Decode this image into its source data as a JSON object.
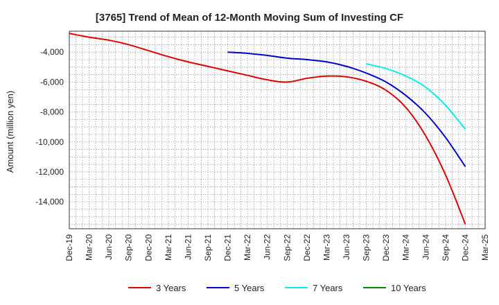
{
  "chart_data": {
    "type": "line",
    "title": "[3765]  Trend of Mean of 12-Month Moving Sum of Investing CF",
    "xlabel": "",
    "ylabel": "Amount (million yen)",
    "ylim": [
      -15800,
      -2600
    ],
    "yticks": [
      -4000,
      -6000,
      -8000,
      -10000,
      -12000,
      -14000
    ],
    "ytick_labels": [
      "-4,000",
      "-6,000",
      "-8,000",
      "-10,000",
      "-12,000",
      "-14,000"
    ],
    "x_tick_labels": [
      "Dec-19",
      "Mar-20",
      "Jun-20",
      "Sep-20",
      "Dec-20",
      "Mar-21",
      "Jun-21",
      "Sep-21",
      "Dec-21",
      "Mar-22",
      "Jun-22",
      "Sep-22",
      "Dec-22",
      "Mar-23",
      "Jun-23",
      "Sep-23",
      "Dec-23",
      "Mar-24",
      "Jun-24",
      "Sep-24",
      "Dec-24",
      "Mar-25"
    ],
    "grid": true,
    "legend_position": "bottom",
    "series": [
      {
        "name": "3 Years",
        "color": "#dd0000",
        "points": [
          [
            0,
            -2750
          ],
          [
            1,
            -3000
          ],
          [
            2,
            -3200
          ],
          [
            3,
            -3500
          ],
          [
            4,
            -3900
          ],
          [
            5,
            -4300
          ],
          [
            6,
            -4650
          ],
          [
            7,
            -4950
          ],
          [
            8,
            -5250
          ],
          [
            9,
            -5550
          ],
          [
            10,
            -5850
          ],
          [
            11,
            -6000
          ],
          [
            12,
            -5750
          ],
          [
            13,
            -5600
          ],
          [
            14,
            -5650
          ],
          [
            15,
            -5950
          ],
          [
            16,
            -6550
          ],
          [
            17,
            -7700
          ],
          [
            18,
            -9600
          ],
          [
            19,
            -12200
          ],
          [
            20,
            -15500
          ]
        ]
      },
      {
        "name": "5 Years",
        "color": "#0000cc",
        "points": [
          [
            8,
            -4000
          ],
          [
            9,
            -4080
          ],
          [
            10,
            -4220
          ],
          [
            11,
            -4400
          ],
          [
            12,
            -4500
          ],
          [
            13,
            -4650
          ],
          [
            14,
            -4950
          ],
          [
            15,
            -5400
          ],
          [
            16,
            -6000
          ],
          [
            17,
            -6900
          ],
          [
            18,
            -8100
          ],
          [
            19,
            -9700
          ],
          [
            20,
            -11650
          ]
        ]
      },
      {
        "name": "7 Years",
        "color": "#00eeee",
        "points": [
          [
            15,
            -4780
          ],
          [
            16,
            -5100
          ],
          [
            17,
            -5600
          ],
          [
            18,
            -6350
          ],
          [
            19,
            -7550
          ],
          [
            20,
            -9150
          ]
        ]
      },
      {
        "name": "10 Years",
        "color": "#008800",
        "points": []
      }
    ]
  }
}
